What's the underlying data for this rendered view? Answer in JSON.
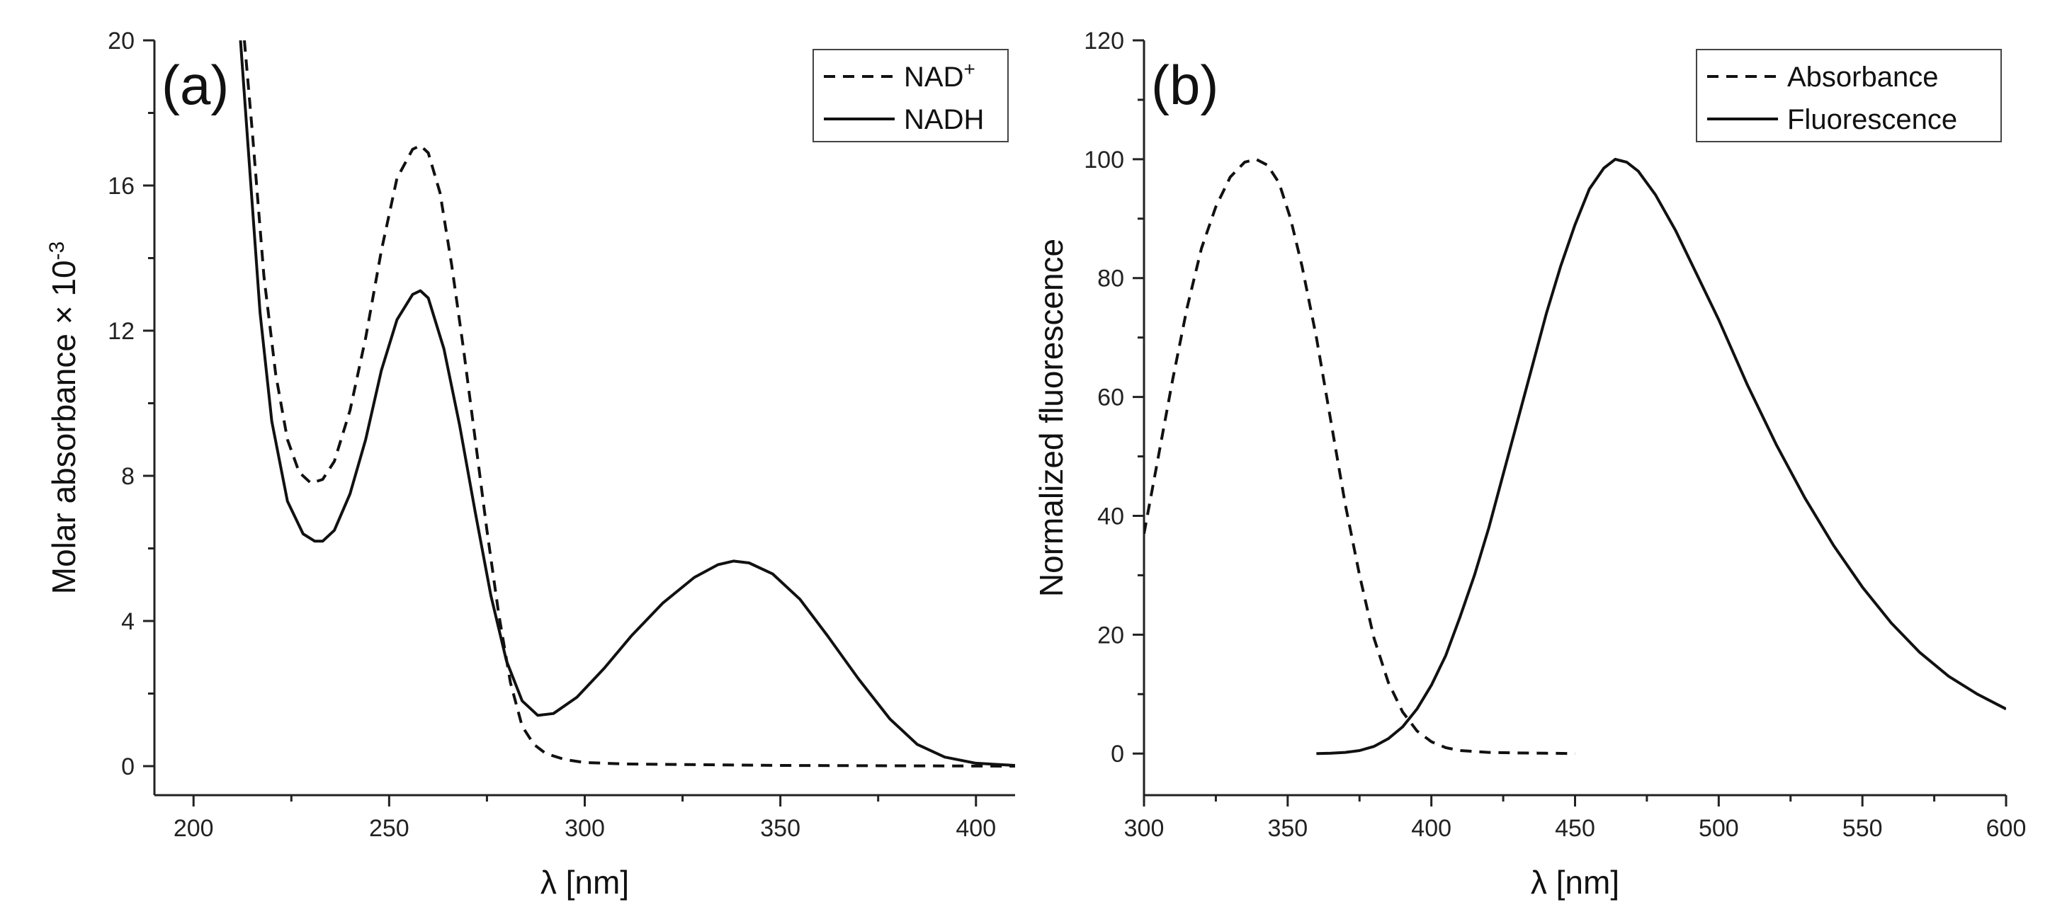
{
  "chart_data": [
    {
      "type": "line",
      "panel_label": "(a)",
      "xlabel": "λ [nm]",
      "ylabel": "Molar absorbance × 10",
      "ylabel_exponent": "-3",
      "xlim": [
        190,
        410
      ],
      "ylim": [
        -0.8,
        20
      ],
      "xticks": [
        200,
        250,
        300,
        350,
        400
      ],
      "yticks": [
        0,
        4,
        8,
        12,
        16,
        20
      ],
      "legend": {
        "placement": "top-right"
      },
      "series": [
        {
          "name": "NAD",
          "name_superscript": "+",
          "style": "dashed",
          "x": [
            213,
            215,
            218,
            221,
            224,
            227,
            230,
            233,
            236,
            240,
            244,
            248,
            252,
            256,
            258,
            260,
            263,
            266,
            269,
            272,
            275,
            278,
            281,
            284,
            287,
            290,
            295,
            300,
            310,
            330,
            350,
            380,
            410
          ],
          "y": [
            20,
            17.5,
            13.5,
            10.8,
            9.0,
            8.1,
            7.8,
            7.9,
            8.4,
            9.8,
            11.8,
            14.2,
            16.2,
            17.0,
            17.1,
            16.9,
            15.8,
            13.8,
            11.5,
            9.0,
            6.5,
            4.2,
            2.3,
            1.1,
            0.6,
            0.35,
            0.18,
            0.1,
            0.06,
            0.04,
            0.02,
            0.01,
            0.0
          ]
        },
        {
          "name": "NADH",
          "style": "solid",
          "x": [
            212,
            214,
            217,
            220,
            224,
            228,
            231,
            233,
            236,
            240,
            244,
            248,
            252,
            256,
            258,
            260,
            264,
            268,
            272,
            276,
            280,
            284,
            288,
            292,
            298,
            305,
            312,
            320,
            328,
            334,
            338,
            342,
            348,
            355,
            362,
            370,
            378,
            385,
            392,
            400,
            410
          ],
          "y": [
            20,
            17.0,
            12.5,
            9.5,
            7.3,
            6.4,
            6.2,
            6.2,
            6.5,
            7.5,
            9.0,
            10.9,
            12.3,
            13.0,
            13.1,
            12.9,
            11.5,
            9.4,
            7.0,
            4.7,
            2.9,
            1.8,
            1.4,
            1.45,
            1.9,
            2.7,
            3.6,
            4.5,
            5.2,
            5.55,
            5.65,
            5.6,
            5.3,
            4.6,
            3.6,
            2.4,
            1.3,
            0.6,
            0.25,
            0.08,
            0.02
          ]
        }
      ]
    },
    {
      "type": "line",
      "panel_label": "(b)",
      "xlabel": "λ [nm]",
      "ylabel": "Normalized fluorescence",
      "xlim": [
        300,
        600
      ],
      "ylim": [
        -7,
        120
      ],
      "xticks": [
        300,
        350,
        400,
        450,
        500,
        550,
        600
      ],
      "yticks": [
        0,
        20,
        40,
        60,
        80,
        100,
        120
      ],
      "legend": {
        "placement": "top-right"
      },
      "series": [
        {
          "name": "Absorbance",
          "style": "dashed",
          "x": [
            300,
            305,
            310,
            315,
            320,
            325,
            330,
            335,
            339,
            343,
            347,
            351,
            355,
            360,
            365,
            370,
            375,
            380,
            385,
            390,
            395,
            400,
            405,
            410,
            420,
            430,
            440,
            450
          ],
          "y": [
            37,
            50,
            63,
            75,
            85,
            92,
            97,
            99.5,
            100,
            99,
            96,
            90,
            82,
            70,
            56,
            42,
            30,
            19.5,
            12,
            7,
            3.8,
            2.0,
            1.0,
            0.5,
            0.2,
            0.1,
            0.05,
            0.0
          ]
        },
        {
          "name": "Fluorescence",
          "style": "solid",
          "x": [
            360,
            365,
            370,
            375,
            380,
            385,
            390,
            395,
            400,
            405,
            410,
            415,
            420,
            425,
            430,
            435,
            440,
            445,
            450,
            455,
            460,
            464,
            468,
            472,
            478,
            485,
            492,
            500,
            510,
            520,
            530,
            540,
            550,
            560,
            570,
            580,
            590,
            600
          ],
          "y": [
            0,
            0.05,
            0.2,
            0.5,
            1.2,
            2.5,
            4.5,
            7.5,
            11.5,
            16.5,
            23,
            30,
            38,
            47,
            56,
            65,
            74,
            82,
            89,
            95,
            98.5,
            100,
            99.5,
            98,
            94,
            88,
            81,
            73,
            62,
            52,
            43,
            35,
            28,
            22,
            17,
            13,
            10,
            7.5
          ]
        }
      ]
    }
  ]
}
